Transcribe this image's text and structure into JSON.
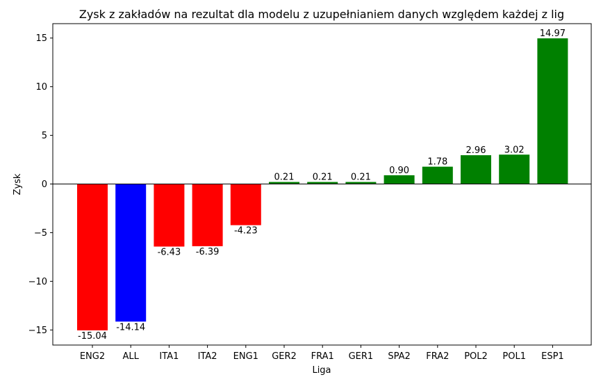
{
  "chart_data": {
    "type": "bar",
    "title": "Zysk z zakładów na rezultat dla modelu z uzupełnianiem danych względem każdej z lig",
    "xlabel": "Liga",
    "ylabel": "Zysk",
    "categories": [
      "ENG2",
      "ALL",
      "ITA1",
      "ITA2",
      "ENG1",
      "GER2",
      "FRA1",
      "GER1",
      "SPA2",
      "FRA2",
      "POL2",
      "POL1",
      "ESP1"
    ],
    "values": [
      -15.04,
      -14.14,
      -6.43,
      -6.39,
      -4.23,
      0.21,
      0.21,
      0.21,
      0.9,
      1.78,
      2.96,
      3.02,
      14.97
    ],
    "data_labels": [
      "-15.04",
      "-14.14",
      "-6.43",
      "-6.39",
      "-4.23",
      "0.21",
      "0.21",
      "0.21",
      "0.90",
      "1.78",
      "2.96",
      "3.02",
      "14.97"
    ],
    "colors": [
      "#ff0000",
      "#0000ff",
      "#ff0000",
      "#ff0000",
      "#ff0000",
      "#008000",
      "#008000",
      "#008000",
      "#008000",
      "#008000",
      "#008000",
      "#008000",
      "#008000"
    ],
    "ylim": [
      -16.55,
      16.48
    ],
    "yticks": [
      -15,
      -10,
      -5,
      0,
      5,
      10,
      15
    ],
    "ytick_labels": [
      "−15",
      "−10",
      "−5",
      "0",
      "5",
      "10",
      "15"
    ],
    "zero_line": true,
    "grid": false,
    "legend": "none"
  }
}
